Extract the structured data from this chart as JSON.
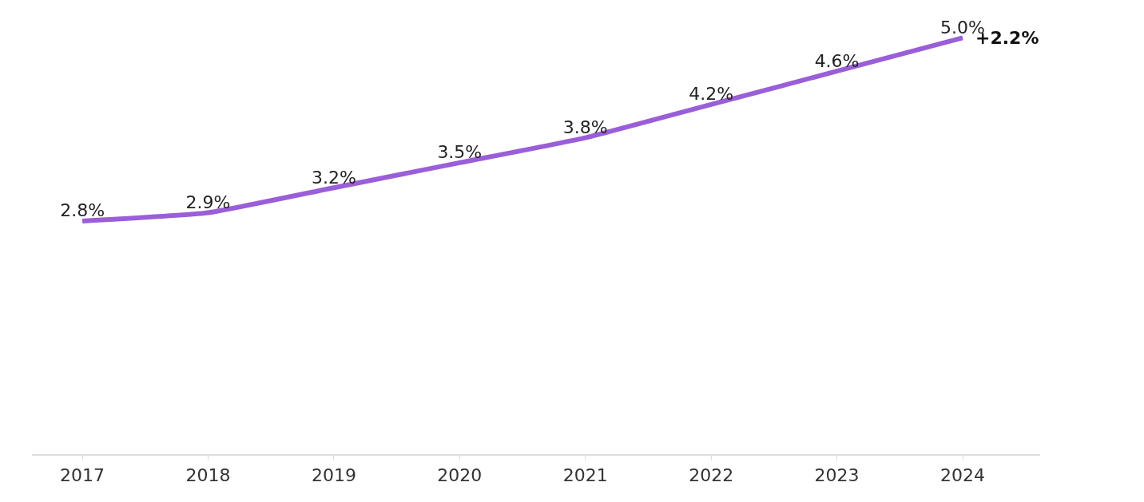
{
  "chart_data": {
    "type": "line",
    "categories": [
      "2017",
      "2018",
      "2019",
      "2020",
      "2021",
      "2022",
      "2023",
      "2024"
    ],
    "series": [
      {
        "color": "#9a5fd8",
        "values": [
          2.8,
          2.9,
          3.2,
          3.5,
          3.8,
          4.2,
          4.6,
          5.0
        ],
        "value_labels": [
          "2.8%",
          "2.9%",
          "3.2%",
          "3.5%",
          "3.8%",
          "4.2%",
          "4.6%",
          "5.0%"
        ]
      }
    ],
    "tick_labels": "x",
    "marker": "none",
    "line_style": "solid",
    "annotations": [
      {
        "text": "+2.2%",
        "x": "2024",
        "y": 5.0
      }
    ]
  }
}
